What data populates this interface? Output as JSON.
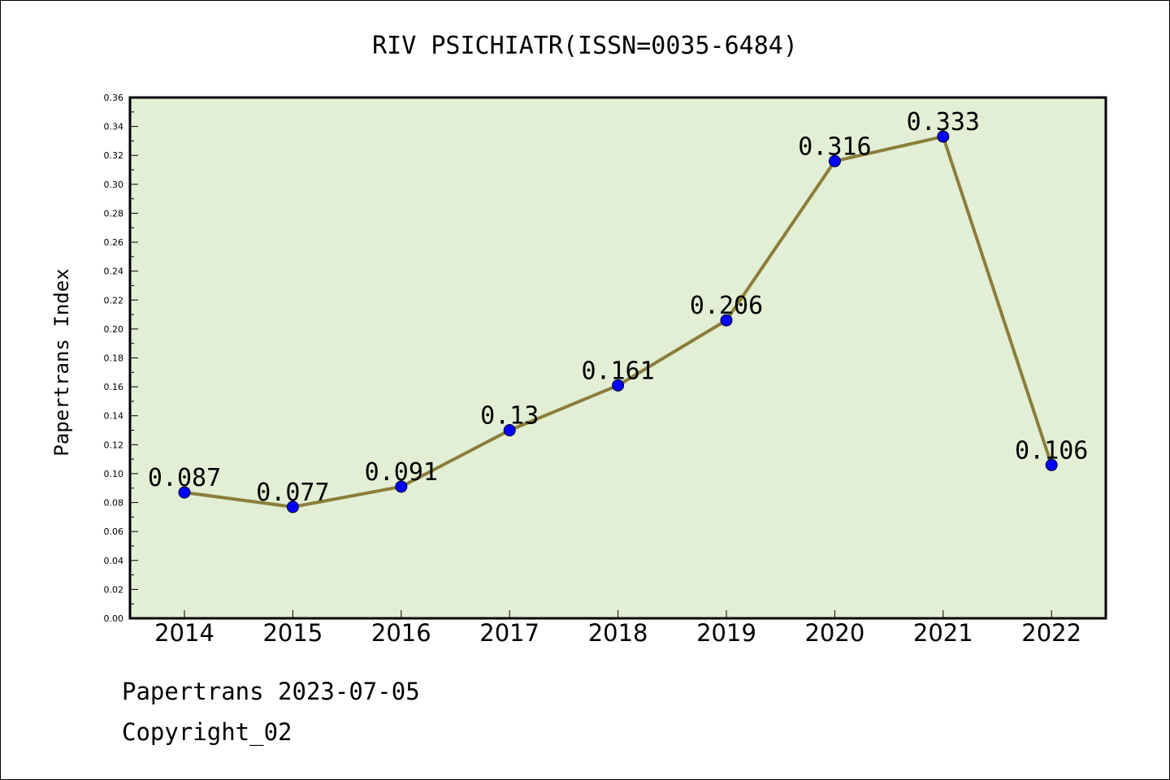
{
  "chart_data": {
    "type": "line",
    "title": "RIV PSICHIATR(ISSN=0035-6484)",
    "xlabel": "",
    "ylabel": "Papertrans Index",
    "categories": [
      "2014",
      "2015",
      "2016",
      "2017",
      "2018",
      "2019",
      "2020",
      "2021",
      "2022"
    ],
    "series": [
      {
        "values": [
          0.087,
          0.077,
          0.091,
          0.13,
          0.161,
          0.206,
          0.316,
          0.333,
          0.106
        ],
        "data_labels": [
          "0.087",
          "0.077",
          "0.091",
          "0.13",
          "0.161",
          "0.206",
          "0.316",
          "0.333",
          "0.106"
        ]
      }
    ],
    "ylim": [
      0,
      0.36
    ],
    "yticks": [
      "0.00",
      "0.02",
      "0.04",
      "0.06",
      "0.08",
      "0.10",
      "0.12",
      "0.14",
      "0.16",
      "0.18",
      "0.20",
      "0.22",
      "0.24",
      "0.26",
      "0.28",
      "0.30",
      "0.32",
      "0.34",
      "0.36"
    ],
    "grid": false,
    "legend": "none",
    "colors": {
      "plot_background": "#e2efd5",
      "line": "#8b7d3a",
      "marker": "#0000ff"
    }
  },
  "footer": {
    "date_line": "Papertrans 2023-07-05",
    "copyright_line": "Copyright_02"
  }
}
